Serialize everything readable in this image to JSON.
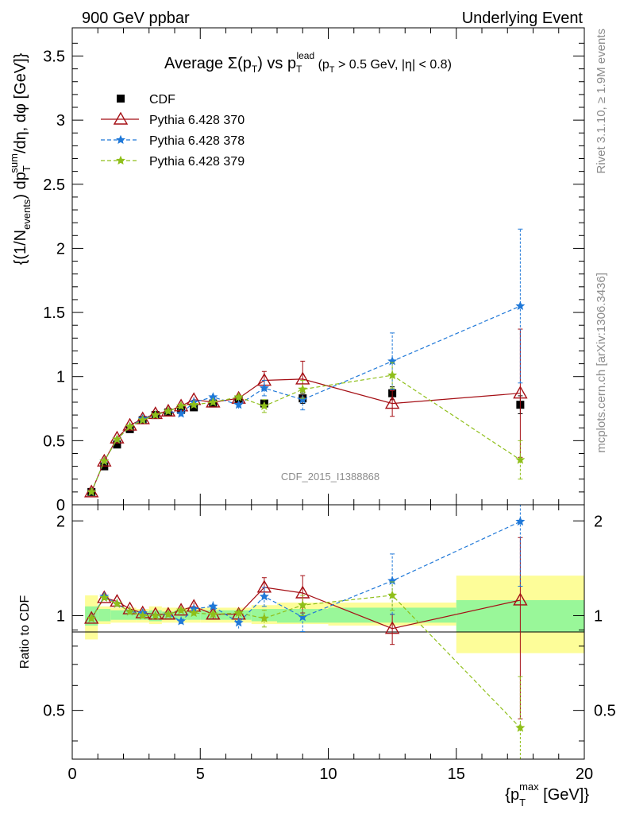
{
  "header": {
    "left": "900 GeV ppbar",
    "right": "Underlying Event"
  },
  "side_labels": {
    "rivet": "Rivet 3.1.10, ≥ 1.9M events",
    "mcplots": "mcplots.cern.ch [arXiv:1306.3436]"
  },
  "chart_data": [
    {
      "type": "scatter",
      "panel": "main",
      "title": "Average Σ(p_T) vs p_T^lead (p_T > 0.5 GeV, |η| < 0.8)",
      "watermark": "CDF_2015_I1388868",
      "ylabel": "{(1/N_events) dp_T^sum/dη, dφ [GeV]}",
      "xlim": [
        0,
        20
      ],
      "ylim": [
        0,
        3.72
      ],
      "y_ticks": [
        "0",
        "0.5",
        "1",
        "1.5",
        "2",
        "2.5",
        "3",
        "3.5"
      ],
      "legend_position": "top-left",
      "x": [
        0.75,
        1.25,
        1.75,
        2.25,
        2.75,
        3.25,
        3.75,
        4.25,
        4.75,
        5.5,
        6.5,
        7.5,
        9.0,
        12.5,
        17.5
      ],
      "x_bins": [
        [
          0.5,
          1.0
        ],
        [
          1.0,
          1.5
        ],
        [
          1.5,
          2.0
        ],
        [
          2.0,
          2.5
        ],
        [
          2.5,
          3.0
        ],
        [
          3.0,
          3.5
        ],
        [
          3.5,
          4.0
        ],
        [
          4.0,
          4.5
        ],
        [
          4.5,
          5.0
        ],
        [
          5.0,
          6.0
        ],
        [
          6.0,
          7.0
        ],
        [
          7.0,
          8.0
        ],
        [
          8.0,
          10.0
        ],
        [
          10.0,
          15.0
        ],
        [
          15.0,
          20.0
        ]
      ],
      "series": [
        {
          "name": "CDF",
          "color": "#000000",
          "marker": "square",
          "values": [
            0.1,
            0.3,
            0.47,
            0.59,
            0.66,
            0.7,
            0.72,
            0.74,
            0.76,
            0.79,
            0.82,
            0.79,
            0.83,
            0.87,
            0.78
          ],
          "errors": [
            0.01,
            0.01,
            0.01,
            0.01,
            0.01,
            0.01,
            0.01,
            0.01,
            0.01,
            0.02,
            0.02,
            0.03,
            0.04,
            0.05,
            0.07
          ]
        },
        {
          "name": "Pythia 6.428 370",
          "color": "#a50f15",
          "marker": "triangle",
          "line": "solid",
          "values": [
            0.1,
            0.34,
            0.52,
            0.62,
            0.67,
            0.71,
            0.73,
            0.77,
            0.82,
            0.8,
            0.83,
            0.97,
            0.98,
            0.79,
            0.87
          ],
          "errors": [
            0.01,
            0.01,
            0.01,
            0.01,
            0.01,
            0.01,
            0.02,
            0.02,
            0.02,
            0.02,
            0.03,
            0.07,
            0.14,
            0.1,
            0.5
          ]
        },
        {
          "name": "Pythia 6.428 378",
          "color": "#1f78d8",
          "marker": "star",
          "line": "dashed",
          "values": [
            0.1,
            0.34,
            0.51,
            0.61,
            0.67,
            0.7,
            0.73,
            0.71,
            0.8,
            0.84,
            0.78,
            0.91,
            0.82,
            1.12,
            1.55
          ],
          "errors": [
            0.01,
            0.01,
            0.01,
            0.01,
            0.01,
            0.01,
            0.02,
            0.02,
            0.02,
            0.03,
            0.03,
            0.06,
            0.08,
            0.22,
            0.6
          ]
        },
        {
          "name": "Pythia 6.428 379",
          "color": "#8fbf1a",
          "marker": "star",
          "line": "dashed",
          "values": [
            0.1,
            0.34,
            0.51,
            0.61,
            0.66,
            0.7,
            0.73,
            0.77,
            0.78,
            0.8,
            0.84,
            0.77,
            0.9,
            1.01,
            0.35
          ],
          "errors": [
            0.01,
            0.01,
            0.01,
            0.01,
            0.01,
            0.01,
            0.02,
            0.02,
            0.02,
            0.02,
            0.03,
            0.05,
            0.07,
            0.1,
            0.15
          ]
        }
      ]
    },
    {
      "type": "scatter",
      "panel": "ratio",
      "ylabel": "Ratio to CDF",
      "xlabel": "{p_T^max [GeV]}",
      "xlim": [
        0,
        20
      ],
      "ylim": [
        0.35,
        2.25
      ],
      "x_ticks": [
        "0",
        "5",
        "10",
        "15",
        "20"
      ],
      "y_ticks": [
        "0.5",
        "1",
        "2"
      ],
      "x": [
        0.75,
        1.25,
        1.75,
        2.25,
        2.75,
        3.25,
        3.75,
        4.25,
        4.75,
        5.5,
        6.5,
        7.5,
        9.0,
        12.5,
        17.5
      ],
      "bands": {
        "x_bins": [
          [
            0.5,
            1.0
          ],
          [
            1.0,
            1.5
          ],
          [
            1.5,
            2.0
          ],
          [
            2.0,
            2.5
          ],
          [
            2.5,
            3.0
          ],
          [
            3.0,
            3.5
          ],
          [
            3.5,
            4.0
          ],
          [
            4.0,
            4.5
          ],
          [
            4.5,
            5.0
          ],
          [
            5.0,
            6.0
          ],
          [
            6.0,
            7.0
          ],
          [
            7.0,
            8.0
          ],
          [
            8.0,
            10.0
          ],
          [
            10.0,
            15.0
          ],
          [
            15.0,
            20.0
          ]
        ],
        "stat": [
          [
            0.93,
            1.07
          ],
          [
            0.96,
            1.05
          ],
          [
            0.97,
            1.04
          ],
          [
            0.97,
            1.04
          ],
          [
            0.97,
            1.03
          ],
          [
            0.96,
            1.04
          ],
          [
            0.97,
            1.03
          ],
          [
            0.97,
            1.04
          ],
          [
            0.97,
            1.04
          ],
          [
            0.97,
            1.04
          ],
          [
            0.97,
            1.04
          ],
          [
            0.96,
            1.05
          ],
          [
            0.95,
            1.05
          ],
          [
            0.95,
            1.06
          ],
          [
            0.89,
            1.12
          ]
        ],
        "total": [
          [
            0.84,
            1.16
          ],
          [
            0.94,
            1.07
          ],
          [
            0.95,
            1.06
          ],
          [
            0.95,
            1.06
          ],
          [
            0.95,
            1.05
          ],
          [
            0.94,
            1.07
          ],
          [
            0.95,
            1.06
          ],
          [
            0.95,
            1.06
          ],
          [
            0.95,
            1.06
          ],
          [
            0.95,
            1.06
          ],
          [
            0.95,
            1.06
          ],
          [
            0.94,
            1.08
          ],
          [
            0.94,
            1.1
          ],
          [
            0.93,
            1.1
          ],
          [
            0.76,
            1.34
          ]
        ],
        "stat_color": "#99f799",
        "total_color": "#fdfd99"
      },
      "series": [
        {
          "name": "Pythia 6.428 370",
          "color": "#a50f15",
          "marker": "triangle",
          "line": "solid",
          "values": [
            0.98,
            1.14,
            1.11,
            1.05,
            1.02,
            1.01,
            1.01,
            1.04,
            1.07,
            1.01,
            1.01,
            1.23,
            1.18,
            0.91,
            1.12
          ],
          "errors": [
            0.02,
            0.02,
            0.02,
            0.02,
            0.02,
            0.02,
            0.02,
            0.02,
            0.03,
            0.03,
            0.04,
            0.09,
            0.16,
            0.1,
            0.65
          ]
        },
        {
          "name": "Pythia 6.428 378",
          "color": "#1f78d8",
          "marker": "star",
          "line": "dashed",
          "values": [
            0.98,
            1.15,
            1.09,
            1.03,
            1.02,
            1.0,
            1.01,
            0.96,
            1.05,
            1.07,
            0.95,
            1.15,
            0.99,
            1.29,
            1.99
          ],
          "errors": [
            0.02,
            0.02,
            0.02,
            0.02,
            0.02,
            0.02,
            0.02,
            0.02,
            0.03,
            0.04,
            0.04,
            0.08,
            0.1,
            0.28,
            0.75
          ]
        },
        {
          "name": "Pythia 6.428 379",
          "color": "#8fbf1a",
          "marker": "star",
          "line": "dashed",
          "values": [
            0.98,
            1.14,
            1.09,
            1.03,
            1.0,
            1.0,
            1.01,
            1.04,
            1.02,
            1.01,
            1.02,
            0.98,
            1.08,
            1.16,
            0.44
          ],
          "errors": [
            0.02,
            0.02,
            0.02,
            0.02,
            0.02,
            0.02,
            0.02,
            0.02,
            0.02,
            0.02,
            0.03,
            0.06,
            0.08,
            0.12,
            0.2
          ]
        }
      ]
    }
  ]
}
